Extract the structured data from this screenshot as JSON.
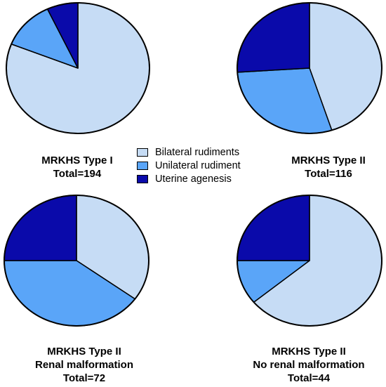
{
  "colors": {
    "bilateral": "#c6dcf5",
    "unilateral": "#5aa5f8",
    "agenesis": "#0a0aaa"
  },
  "legend": [
    {
      "label": "Bilateral rudiments",
      "color": "#c6dcf5"
    },
    {
      "label": "Unilateral rudiment",
      "color": "#5aa5f8"
    },
    {
      "label": "Uterine agenesis",
      "color": "#0a0aaa"
    }
  ],
  "chart_data": [
    {
      "type": "pie",
      "title_lines": [
        "MRKHS Type I",
        "Total=194"
      ],
      "labels": [
        "Bilateral rudiments",
        "Unilateral rudiment",
        "Uterine agenesis"
      ],
      "values": [
        81,
        12,
        7
      ]
    },
    {
      "type": "pie",
      "title_lines": [
        "MRKHS Type II",
        "Total=116"
      ],
      "labels": [
        "Bilateral rudiments",
        "Unilateral rudiment",
        "Uterine agenesis"
      ],
      "values": [
        45,
        29,
        26
      ]
    },
    {
      "type": "pie",
      "title_lines": [
        "MRKHS Type II",
        "Renal malformation",
        "Total=72"
      ],
      "labels": [
        "Bilateral rudiments",
        "Unilateral rudiment",
        "Uterine agenesis"
      ],
      "values": [
        35,
        40,
        25
      ]
    },
    {
      "type": "pie",
      "title_lines": [
        "MRKHS Type II",
        "No renal malformation",
        "Total=44"
      ],
      "labels": [
        "Bilateral rudiments",
        "Unilateral rudiment",
        "Uterine agenesis"
      ],
      "values": [
        64,
        11,
        25
      ]
    }
  ]
}
